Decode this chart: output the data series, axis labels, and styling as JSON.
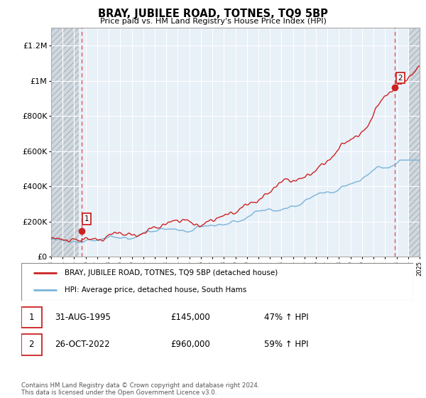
{
  "title": "BRAY, JUBILEE ROAD, TOTNES, TQ9 5BP",
  "subtitle": "Price paid vs. HM Land Registry's House Price Index (HPI)",
  "ylim": [
    0,
    1300000
  ],
  "yticks": [
    0,
    200000,
    400000,
    600000,
    800000,
    1000000,
    1200000
  ],
  "x_start_year": 1993,
  "x_end_year": 2025,
  "hpi_color": "#7ab4d8",
  "price_color": "#cc2222",
  "point1_year": 1995.67,
  "point1_price": 145000,
  "point2_year": 2022.83,
  "point2_price": 960000,
  "legend_label_price": "BRAY, JUBILEE ROAD, TOTNES, TQ9 5BP (detached house)",
  "legend_label_hpi": "HPI: Average price, detached house, South Hams",
  "ann1_date": "31-AUG-1995",
  "ann1_price": "£145,000",
  "ann1_hpi": "47% ↑ HPI",
  "ann2_date": "26-OCT-2022",
  "ann2_price": "£960,000",
  "ann2_hpi": "59% ↑ HPI",
  "footer": "Contains HM Land Registry data © Crown copyright and database right 2024.\nThis data is licensed under the Open Government Licence v3.0.",
  "bg_color": "#e8f0f8",
  "hatch_color": "#c8c8c8",
  "grid_color": "#ffffff",
  "dashed_color": "#dd4444"
}
